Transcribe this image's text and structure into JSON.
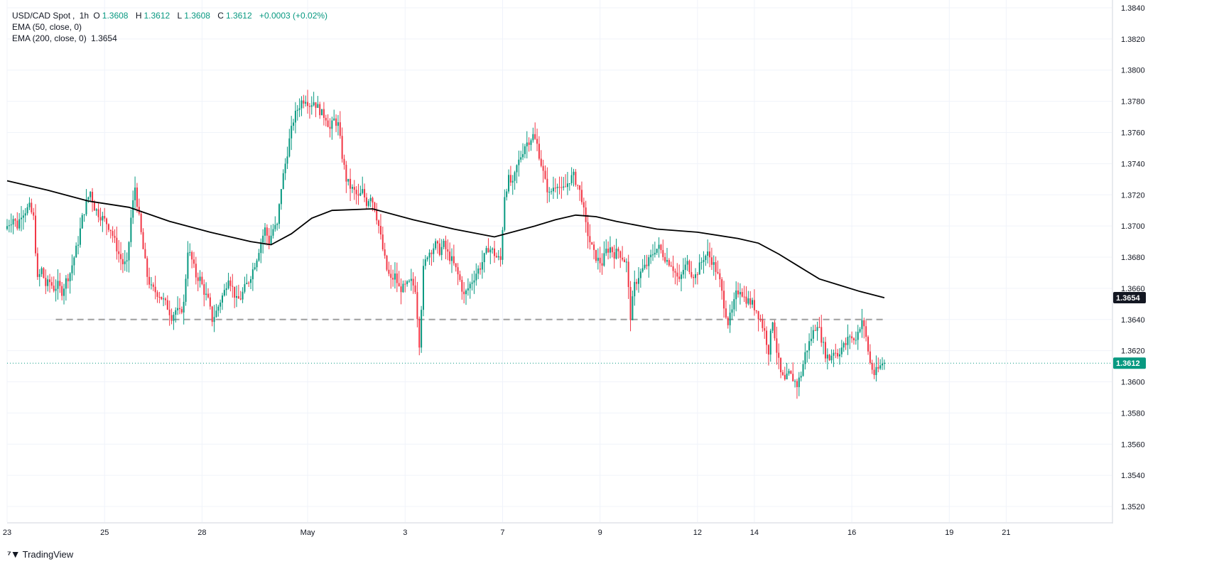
{
  "header": {
    "symbol": "USD/CAD Spot",
    "interval": "1h",
    "o_label": "O",
    "o_value": "1.3608",
    "h_label": "H",
    "h_value": "1.3612",
    "l_label": "L",
    "l_value": "1.3608",
    "c_label": "C",
    "c_value": "1.3612",
    "change": "+0.0003 (+0.02%)",
    "ema50_label": "EMA (50, close, 0)",
    "ema200_label": "EMA (200, close, 0)",
    "ema200_value": "1.3654"
  },
  "branding": {
    "name": "TradingView"
  },
  "colors": {
    "up": "#089981",
    "down": "#f23645",
    "ema": "#000000",
    "support": "#9e9e9e",
    "price_line": "#089981",
    "grid": "#f0f3fa"
  },
  "chart_data": {
    "type": "candlestick",
    "title": "USD/CAD Spot, 1h",
    "ylim": [
      1.351,
      1.3845
    ],
    "y_ticks": [
      "1.3840",
      "1.3820",
      "1.3800",
      "1.3780",
      "1.3760",
      "1.3740",
      "1.3720",
      "1.3700",
      "1.3680",
      "1.3660",
      "1.3640",
      "1.3620",
      "1.3600",
      "1.3580",
      "1.3560",
      "1.3540",
      "1.3520"
    ],
    "x_ticks": [
      {
        "label": "23",
        "x": 0
      },
      {
        "label": "25",
        "x": 24
      },
      {
        "label": "28",
        "x": 48
      },
      {
        "label": "May",
        "x": 74
      },
      {
        "label": "3",
        "x": 98
      },
      {
        "label": "7",
        "x": 122
      },
      {
        "label": "9",
        "x": 146
      },
      {
        "label": "12",
        "x": 170
      },
      {
        "label": "14",
        "x": 184
      },
      {
        "label": "16",
        "x": 208
      },
      {
        "label": "19",
        "x": 232
      },
      {
        "label": "21",
        "x": 246
      }
    ],
    "x_range": [
      0,
      272
    ],
    "price_path": [
      [
        0,
        1.3698
      ],
      [
        1,
        1.3702
      ],
      [
        2,
        1.3705
      ],
      [
        3,
        1.37
      ],
      [
        4,
        1.3708
      ],
      [
        5,
        1.371
      ],
      [
        6,
        1.3712
      ],
      [
        7,
        1.3705
      ],
      [
        8,
        1.3665
      ],
      [
        9,
        1.3672
      ],
      [
        10,
        1.3662
      ],
      [
        11,
        1.3664
      ],
      [
        12,
        1.366
      ],
      [
        13,
        1.3662
      ],
      [
        14,
        1.3658
      ],
      [
        15,
        1.3665
      ],
      [
        16,
        1.367
      ],
      [
        17,
        1.368
      ],
      [
        18,
        1.369
      ],
      [
        19,
        1.3705
      ],
      [
        20,
        1.3715
      ],
      [
        21,
        1.3722
      ],
      [
        22,
        1.3712
      ],
      [
        23,
        1.3708
      ],
      [
        24,
        1.3705
      ],
      [
        25,
        1.3702
      ],
      [
        26,
        1.3698
      ],
      [
        27,
        1.369
      ],
      [
        28,
        1.3682
      ],
      [
        29,
        1.3676
      ],
      [
        30,
        1.3675
      ],
      [
        31,
        1.3705
      ],
      [
        32,
        1.3725
      ],
      [
        33,
        1.3705
      ],
      [
        34,
        1.3685
      ],
      [
        35,
        1.3668
      ],
      [
        36,
        1.366
      ],
      [
        37,
        1.3658
      ],
      [
        38,
        1.3656
      ],
      [
        39,
        1.3652
      ],
      [
        40,
        1.3648
      ],
      [
        41,
        1.3642
      ],
      [
        42,
        1.3646
      ],
      [
        43,
        1.3644
      ],
      [
        44,
        1.365
      ],
      [
        45,
        1.3685
      ],
      [
        46,
        1.3678
      ],
      [
        47,
        1.3668
      ],
      [
        48,
        1.3666
      ],
      [
        49,
        1.3658
      ],
      [
        50,
        1.3652
      ],
      [
        51,
        1.364
      ],
      [
        52,
        1.3645
      ],
      [
        53,
        1.3652
      ],
      [
        54,
        1.3658
      ],
      [
        55,
        1.3668
      ],
      [
        56,
        1.366
      ],
      [
        57,
        1.3652
      ],
      [
        58,
        1.3654
      ],
      [
        59,
        1.366
      ],
      [
        60,
        1.3665
      ],
      [
        61,
        1.3672
      ],
      [
        62,
        1.368
      ],
      [
        63,
        1.369
      ],
      [
        64,
        1.3698
      ],
      [
        65,
        1.369
      ],
      [
        66,
        1.3698
      ],
      [
        67,
        1.37
      ],
      [
        68,
        1.3725
      ],
      [
        69,
        1.374
      ],
      [
        70,
        1.3755
      ],
      [
        71,
        1.3768
      ],
      [
        72,
        1.3775
      ],
      [
        73,
        1.378
      ],
      [
        74,
        1.3782
      ],
      [
        75,
        1.3778
      ],
      [
        76,
        1.378
      ],
      [
        77,
        1.3776
      ],
      [
        78,
        1.3772
      ],
      [
        79,
        1.377
      ],
      [
        80,
        1.3762
      ],
      [
        81,
        1.3768
      ],
      [
        82,
        1.3765
      ],
      [
        83,
        1.3745
      ],
      [
        84,
        1.373
      ],
      [
        85,
        1.3725
      ],
      [
        86,
        1.3722
      ],
      [
        87,
        1.3718
      ],
      [
        88,
        1.3722
      ],
      [
        89,
        1.3715
      ],
      [
        90,
        1.372
      ],
      [
        91,
        1.3712
      ],
      [
        92,
        1.37
      ],
      [
        93,
        1.3685
      ],
      [
        94,
        1.3672
      ],
      [
        95,
        1.3665
      ],
      [
        96,
        1.3668
      ],
      [
        97,
        1.366
      ],
      [
        98,
        1.366
      ],
      [
        99,
        1.3662
      ],
      [
        100,
        1.3664
      ],
      [
        101,
        1.366
      ],
      [
        102,
        1.3625
      ],
      [
        103,
        1.3672
      ],
      [
        104,
        1.3682
      ],
      [
        105,
        1.3685
      ],
      [
        106,
        1.3688
      ],
      [
        107,
        1.3684
      ],
      [
        108,
        1.3688
      ],
      [
        109,
        1.3682
      ],
      [
        110,
        1.3678
      ],
      [
        111,
        1.3672
      ],
      [
        112,
        1.3665
      ],
      [
        113,
        1.3655
      ],
      [
        114,
        1.366
      ],
      [
        115,
        1.3665
      ],
      [
        116,
        1.367
      ],
      [
        117,
        1.3674
      ],
      [
        118,
        1.368
      ],
      [
        119,
        1.3686
      ],
      [
        120,
        1.3684
      ],
      [
        121,
        1.368
      ],
      [
        122,
        1.3678
      ],
      [
        123,
        1.372
      ],
      [
        124,
        1.373
      ],
      [
        125,
        1.3726
      ],
      [
        126,
        1.3738
      ],
      [
        127,
        1.3745
      ],
      [
        128,
        1.3752
      ],
      [
        129,
        1.3755
      ],
      [
        130,
        1.3758
      ],
      [
        131,
        1.3752
      ],
      [
        132,
        1.374
      ],
      [
        133,
        1.3728
      ],
      [
        134,
        1.372
      ],
      [
        135,
        1.3725
      ],
      [
        136,
        1.3728
      ],
      [
        137,
        1.3722
      ],
      [
        138,
        1.3725
      ],
      [
        139,
        1.373
      ],
      [
        140,
        1.3732
      ],
      [
        141,
        1.3726
      ],
      [
        142,
        1.3718
      ],
      [
        143,
        1.37
      ],
      [
        144,
        1.369
      ],
      [
        145,
        1.3682
      ],
      [
        146,
        1.3678
      ],
      [
        147,
        1.3676
      ],
      [
        148,
        1.3684
      ],
      [
        149,
        1.3686
      ],
      [
        150,
        1.3682
      ],
      [
        151,
        1.3684
      ],
      [
        152,
        1.368
      ],
      [
        153,
        1.3676
      ],
      [
        154,
        1.3642
      ],
      [
        155,
        1.3662
      ],
      [
        156,
        1.3668
      ],
      [
        157,
        1.3672
      ],
      [
        158,
        1.3675
      ],
      [
        159,
        1.368
      ],
      [
        160,
        1.3685
      ],
      [
        161,
        1.3686
      ],
      [
        162,
        1.3682
      ],
      [
        163,
        1.3678
      ],
      [
        164,
        1.3676
      ],
      [
        165,
        1.367
      ],
      [
        166,
        1.3664
      ],
      [
        167,
        1.3672
      ],
      [
        168,
        1.3676
      ],
      [
        169,
        1.367
      ],
      [
        170,
        1.3668
      ],
      [
        171,
        1.3674
      ],
      [
        172,
        1.368
      ],
      [
        173,
        1.3682
      ],
      [
        174,
        1.3678
      ],
      [
        175,
        1.3672
      ],
      [
        176,
        1.3664
      ],
      [
        177,
        1.365
      ],
      [
        178,
        1.3638
      ],
      [
        179,
        1.3645
      ],
      [
        180,
        1.3656
      ],
      [
        181,
        1.366
      ],
      [
        182,
        1.3654
      ],
      [
        183,
        1.3652
      ],
      [
        184,
        1.365
      ],
      [
        185,
        1.3646
      ],
      [
        186,
        1.364
      ],
      [
        187,
        1.3632
      ],
      [
        188,
        1.362
      ],
      [
        189,
        1.364
      ],
      [
        190,
        1.362
      ],
      [
        191,
        1.3605
      ],
      [
        192,
        1.36
      ],
      [
        193,
        1.3605
      ],
      [
        194,
        1.3602
      ],
      [
        195,
        1.3598
      ],
      [
        196,
        1.3605
      ],
      [
        197,
        1.3618
      ],
      [
        198,
        1.3625
      ],
      [
        199,
        1.3632
      ],
      [
        200,
        1.3638
      ],
      [
        201,
        1.3628
      ],
      [
        202,
        1.3618
      ],
      [
        203,
        1.3615
      ],
      [
        204,
        1.362
      ],
      [
        205,
        1.3618
      ],
      [
        206,
        1.3622
      ],
      [
        207,
        1.3624
      ],
      [
        208,
        1.363
      ],
      [
        209,
        1.3626
      ],
      [
        210,
        1.3632
      ],
      [
        211,
        1.364
      ],
      [
        212,
        1.3628
      ],
      [
        213,
        1.3612
      ],
      [
        214,
        1.3605
      ],
      [
        215,
        1.3608
      ],
      [
        216,
        1.3612
      ]
    ],
    "ema200": [
      [
        0,
        1.3729
      ],
      [
        10,
        1.3723
      ],
      [
        20,
        1.3716
      ],
      [
        30,
        1.3712
      ],
      [
        40,
        1.3703
      ],
      [
        50,
        1.3696
      ],
      [
        60,
        1.369
      ],
      [
        65,
        1.3688
      ],
      [
        70,
        1.3695
      ],
      [
        75,
        1.3705
      ],
      [
        80,
        1.371
      ],
      [
        90,
        1.3711
      ],
      [
        100,
        1.3704
      ],
      [
        110,
        1.3698
      ],
      [
        120,
        1.3693
      ],
      [
        130,
        1.37
      ],
      [
        135,
        1.3704
      ],
      [
        140,
        1.3707
      ],
      [
        145,
        1.3706
      ],
      [
        150,
        1.3703
      ],
      [
        160,
        1.3698
      ],
      [
        170,
        1.3696
      ],
      [
        180,
        1.3692
      ],
      [
        185,
        1.3689
      ],
      [
        190,
        1.3682
      ],
      [
        195,
        1.3674
      ],
      [
        200,
        1.3666
      ],
      [
        205,
        1.3662
      ],
      [
        210,
        1.3658
      ],
      [
        216,
        1.3654
      ]
    ],
    "support_level": 1.364,
    "support_x_range": [
      12,
      216
    ],
    "current_price": "1.3612",
    "ema200_last": "1.3654"
  }
}
